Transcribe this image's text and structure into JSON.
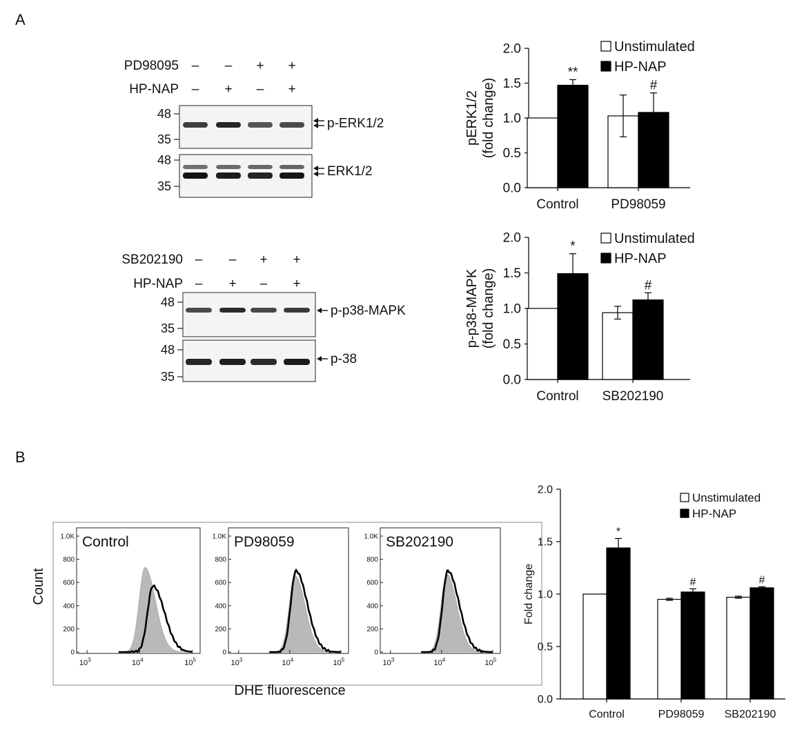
{
  "figure": {
    "panel_a_label": "A",
    "panel_b_label": "B"
  },
  "blots": {
    "erk": {
      "row1_label": "PD98095",
      "row1_marks": [
        "–",
        "–",
        "+",
        "+"
      ],
      "row2_label": "HP-NAP",
      "row2_marks": [
        "–",
        "+",
        "–",
        "+"
      ],
      "top_band_label": "p-ERK1/2",
      "bottom_band_label": "ERK1/2",
      "mw_top": [
        "48",
        "35"
      ],
      "mw_bottom": [
        "48",
        "35"
      ]
    },
    "p38": {
      "row1_label": "SB202190",
      "row1_marks": [
        "–",
        "–",
        "+",
        "+"
      ],
      "row2_label": "HP-NAP",
      "row2_marks": [
        "–",
        "+",
        "–",
        "+"
      ],
      "top_band_label": "p-p38-MAPK",
      "bottom_band_label": "p-38",
      "mw_top": [
        "48",
        "35"
      ],
      "mw_bottom": [
        "48",
        "35"
      ]
    }
  },
  "flow": {
    "y_axis_label": "Count",
    "x_axis_label": "DHE fluorescence",
    "y_ticks": [
      "0",
      "200",
      "400",
      "600",
      "800",
      "1.0K"
    ],
    "x_ticks": [
      {
        "base": "10",
        "exp": "3"
      },
      {
        "base": "10",
        "exp": "4"
      },
      {
        "base": "10",
        "exp": "5"
      }
    ],
    "panels": [
      {
        "title": "Control",
        "gray_peak_log": 4.1,
        "gray_peak_count": 730,
        "black_peak_log": 4.25,
        "black_peak_count": 570
      },
      {
        "title": "PD98059",
        "gray_peak_log": 4.1,
        "gray_peak_count": 660,
        "black_peak_log": 4.12,
        "black_peak_count": 700
      },
      {
        "title": "SB202190",
        "gray_peak_log": 4.1,
        "gray_peak_count": 670,
        "black_peak_log": 4.12,
        "black_peak_count": 700
      }
    ]
  },
  "chart_data": [
    {
      "type": "bar",
      "title": "",
      "xlabel": "",
      "ylabel": "pERK1/2 (fold change)",
      "ylabel_lines": [
        "pERK1/2",
        "(fold change)"
      ],
      "ylim": [
        0,
        2.0
      ],
      "yticks": [
        "0.0",
        "0.5",
        "1.0",
        "1.5",
        "2.0"
      ],
      "categories": [
        "Control",
        "PD98059"
      ],
      "series": [
        {
          "name": "Unstimulated",
          "color": "#ffffff",
          "values": [
            1.0,
            1.03
          ],
          "errors": [
            0,
            0.3
          ]
        },
        {
          "name": "HP-NAP",
          "color": "#000000",
          "values": [
            1.47,
            1.08
          ],
          "errors": [
            0.08,
            0.28
          ]
        }
      ],
      "annotations": [
        {
          "category": 0,
          "series": 1,
          "text": "**"
        },
        {
          "category": 1,
          "series": 1,
          "text": "#"
        }
      ],
      "legend": "top-right"
    },
    {
      "type": "bar",
      "title": "",
      "xlabel": "",
      "ylabel": "p-p38-MAPK (fold change)",
      "ylabel_lines": [
        "p-p38-MAPK",
        "(fold change)"
      ],
      "ylim": [
        0,
        2.0
      ],
      "yticks": [
        "0.0",
        "0.5",
        "1.0",
        "1.5",
        "2.0"
      ],
      "categories": [
        "Control",
        "SB202190"
      ],
      "series": [
        {
          "name": "Unstimulated",
          "color": "#ffffff",
          "values": [
            1.0,
            0.94
          ],
          "errors": [
            0,
            0.09
          ]
        },
        {
          "name": "HP-NAP",
          "color": "#000000",
          "values": [
            1.49,
            1.12
          ],
          "errors": [
            0.28,
            0.1
          ]
        }
      ],
      "annotations": [
        {
          "category": 0,
          "series": 1,
          "text": "*"
        },
        {
          "category": 1,
          "series": 1,
          "text": "#"
        }
      ],
      "legend": "top-right"
    },
    {
      "type": "bar",
      "title": "",
      "xlabel": "",
      "ylabel": "Fold change",
      "ylabel_lines": [
        "Fold change"
      ],
      "ylim": [
        0,
        2.0
      ],
      "yticks": [
        "0.0",
        "0.5",
        "1.0",
        "1.5",
        "2.0"
      ],
      "categories": [
        "Control",
        "PD98059",
        "SB202190"
      ],
      "series": [
        {
          "name": "Unstimulated",
          "color": "#ffffff",
          "values": [
            1.0,
            0.95,
            0.97
          ],
          "errors": [
            0,
            0.01,
            0.01
          ]
        },
        {
          "name": "HP-NAP",
          "color": "#000000",
          "values": [
            1.44,
            1.02,
            1.06
          ],
          "errors": [
            0.09,
            0.03,
            0.01
          ]
        }
      ],
      "annotations": [
        {
          "category": 0,
          "series": 1,
          "text": "*"
        },
        {
          "category": 1,
          "series": 1,
          "text": "#"
        },
        {
          "category": 2,
          "series": 1,
          "text": "#"
        }
      ],
      "legend": "top-right"
    }
  ]
}
